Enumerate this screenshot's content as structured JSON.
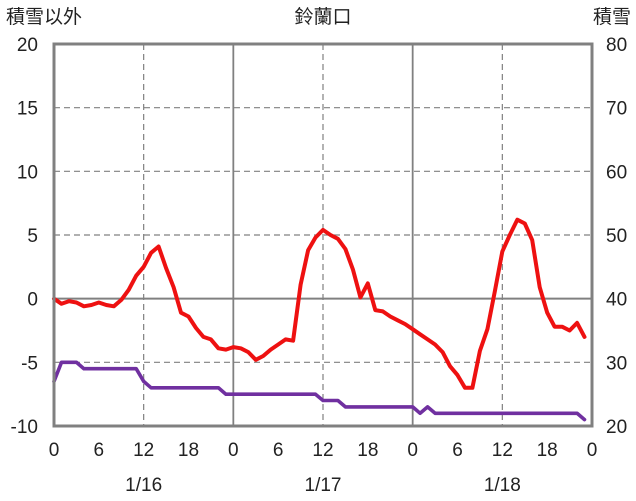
{
  "chart_data": {
    "type": "line",
    "title": "鈴蘭口",
    "y_left_label": "積雪以外",
    "y_right_label": "積雪",
    "y_left_range": [
      -10,
      20
    ],
    "y_left_ticks": [
      "20",
      "15",
      "10",
      "5",
      "0",
      "-5",
      "-10"
    ],
    "y_right_range": [
      20,
      80
    ],
    "y_right_ticks": [
      "80",
      "70",
      "60",
      "50",
      "40",
      "30",
      "20"
    ],
    "x_range": [
      0,
      72
    ],
    "x_ticks": [
      {
        "x": 0,
        "label": "0"
      },
      {
        "x": 6,
        "label": "6"
      },
      {
        "x": 12,
        "label": "12"
      },
      {
        "x": 18,
        "label": "18"
      },
      {
        "x": 24,
        "label": "0"
      },
      {
        "x": 30,
        "label": "6"
      },
      {
        "x": 36,
        "label": "12"
      },
      {
        "x": 42,
        "label": "18"
      },
      {
        "x": 48,
        "label": "0"
      },
      {
        "x": 54,
        "label": "6"
      },
      {
        "x": 60,
        "label": "12"
      },
      {
        "x": 66,
        "label": "18"
      },
      {
        "x": 72,
        "label": "0"
      }
    ],
    "date_labels": [
      {
        "x": 12,
        "label": "1/16"
      },
      {
        "x": 36,
        "label": "1/17"
      },
      {
        "x": 60,
        "label": "1/18"
      }
    ],
    "solid_gridlines_x": [
      24,
      48
    ],
    "dashed_gridlines_x": [
      12,
      36,
      60
    ],
    "zero_line_left": 0,
    "colors": {
      "temperature": "#ee1111",
      "snow_depth": "#7030a0",
      "frame": "#808080",
      "gridline": "#808080"
    },
    "series": [
      {
        "axis": "left",
        "color": "#ee1111",
        "x": [
          0,
          1,
          2,
          3,
          4,
          5,
          6,
          7,
          8,
          9,
          10,
          11,
          12,
          13,
          14,
          15,
          16,
          17,
          18,
          19,
          20,
          21,
          22,
          23,
          24,
          25,
          26,
          27,
          28,
          29,
          30,
          31,
          32,
          33,
          34,
          35,
          36,
          37,
          38,
          39,
          40,
          41,
          42,
          43,
          44,
          45,
          46,
          47,
          48,
          49,
          50,
          51,
          52,
          53,
          54,
          55,
          56,
          57,
          58,
          59,
          60,
          61,
          62,
          63,
          64,
          65,
          66,
          67,
          68,
          69,
          70,
          71
        ],
        "values": [
          0,
          -0.4,
          -0.2,
          -0.3,
          -0.6,
          -0.5,
          -0.3,
          -0.5,
          -0.6,
          -0.1,
          0.7,
          1.8,
          2.5,
          3.6,
          4.1,
          2.4,
          0.9,
          -1.1,
          -1.4,
          -2.3,
          -3,
          -3.2,
          -3.9,
          -4,
          -3.8,
          -3.9,
          -4.2,
          -4.8,
          -4.5,
          -4,
          -3.6,
          -3.2,
          -3.3,
          1.1,
          3.8,
          4.8,
          5.4,
          5,
          4.7,
          3.9,
          2.3,
          0.1,
          1.2,
          -0.9,
          -1,
          -1.4,
          -1.7,
          -2,
          -2.4,
          -2.8,
          -3.2,
          -3.6,
          -4.2,
          -5.3,
          -6,
          -7,
          -7,
          -4.1,
          -2.4,
          0.6,
          3.7,
          5,
          6.2,
          5.9,
          4.6,
          0.9,
          -1.1,
          -2.2,
          -2.2,
          -2.5,
          -1.9,
          -3
        ]
      },
      {
        "axis": "right",
        "color": "#7030a0",
        "x": [
          0,
          1,
          2,
          3,
          4,
          5,
          6,
          7,
          8,
          9,
          10,
          11,
          12,
          13,
          14,
          15,
          16,
          17,
          18,
          19,
          20,
          21,
          22,
          23,
          24,
          25,
          26,
          27,
          28,
          29,
          30,
          31,
          32,
          33,
          34,
          35,
          36,
          37,
          38,
          39,
          40,
          41,
          42,
          43,
          44,
          45,
          46,
          47,
          48,
          49,
          50,
          51,
          52,
          53,
          54,
          55,
          56,
          57,
          58,
          59,
          60,
          61,
          62,
          63,
          64,
          65,
          66,
          67,
          68,
          69,
          70,
          71
        ],
        "values": [
          27,
          30,
          30,
          30,
          29,
          29,
          29,
          29,
          29,
          29,
          29,
          29,
          27,
          26,
          26,
          26,
          26,
          26,
          26,
          26,
          26,
          26,
          26,
          25,
          25,
          25,
          25,
          25,
          25,
          25,
          25,
          25,
          25,
          25,
          25,
          25,
          24,
          24,
          24,
          23,
          23,
          23,
          23,
          23,
          23,
          23,
          23,
          23,
          23,
          22,
          23,
          22,
          22,
          22,
          22,
          22,
          22,
          22,
          22,
          22,
          22,
          22,
          22,
          22,
          22,
          22,
          22,
          22,
          22,
          22,
          22,
          21
        ]
      }
    ]
  }
}
